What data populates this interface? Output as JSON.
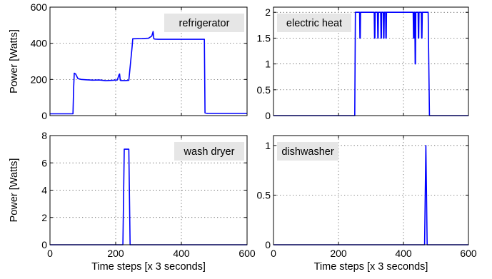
{
  "figure": {
    "xlabel": "Time steps [x 3 seconds]",
    "ylabel": "Power [Watts]",
    "line_color": "#0000ff",
    "label_background": "#e6e6e6"
  },
  "chart_data": [
    {
      "type": "line",
      "title": "refrigerator",
      "xlabel": "",
      "ylabel": "Power [Watts]",
      "xlim": [
        0,
        600
      ],
      "ylim": [
        0,
        600
      ],
      "xticks": [
        0,
        200,
        400,
        600
      ],
      "yticks": [
        0,
        200,
        400,
        600
      ],
      "xtick_labels_shown": false,
      "grid": true,
      "legend_position": "top-right",
      "series": [
        {
          "x": [
            0,
            70,
            72,
            74,
            78,
            85,
            95,
            110,
            130,
            150,
            170,
            190,
            205,
            210,
            212,
            214,
            216,
            230,
            240,
            250,
            252,
            255,
            280,
            300,
            310,
            314,
            316,
            320,
            330,
            360,
            400,
            440,
            470,
            472,
            480,
            520,
            560,
            600
          ],
          "y": [
            10,
            10,
            150,
            235,
            230,
            205,
            200,
            198,
            196,
            197,
            193,
            195,
            197,
            225,
            230,
            195,
            194,
            194,
            195,
            380,
            425,
            425,
            426,
            428,
            440,
            465,
            425,
            423,
            422,
            422,
            422,
            422,
            422,
            15,
            12,
            12,
            12,
            12
          ]
        }
      ]
    },
    {
      "type": "line",
      "title": "electric heat",
      "xlabel": "",
      "ylabel": "",
      "xlim": [
        0,
        600
      ],
      "ylim": [
        0,
        2.1
      ],
      "xticks": [
        0,
        200,
        400,
        600
      ],
      "yticks": [
        0,
        0.5,
        1,
        1.5,
        2
      ],
      "xtick_labels_shown": false,
      "grid": true,
      "legend_position": "top-left",
      "series": [
        {
          "x": [
            0,
            250,
            252,
            265,
            266,
            267,
            268,
            310,
            311,
            312,
            313,
            320,
            321,
            322,
            323,
            330,
            331,
            332,
            333,
            338,
            339,
            340,
            341,
            345,
            346,
            347,
            348,
            430,
            431,
            432,
            433,
            435,
            436,
            437,
            438,
            445,
            446,
            447,
            448,
            455,
            456,
            457,
            458,
            475,
            476,
            480,
            490,
            600
          ],
          "y": [
            0,
            0,
            2,
            2,
            1.5,
            1.5,
            2,
            2,
            1.5,
            1.5,
            2,
            2,
            1.5,
            1.5,
            2,
            2,
            1.5,
            1.5,
            2,
            2,
            1.5,
            1.5,
            2,
            2,
            1.5,
            1.5,
            2,
            2,
            1.5,
            1.5,
            2,
            2,
            1,
            1,
            2,
            2,
            1.5,
            1.5,
            2,
            2,
            1.5,
            1.5,
            2,
            2,
            2,
            0,
            0,
            0
          ]
        }
      ]
    },
    {
      "type": "line",
      "title": "wash dryer",
      "xlabel": "Time steps [x 3 seconds]",
      "ylabel": "Power [Watts]",
      "xlim": [
        0,
        600
      ],
      "ylim": [
        0,
        8
      ],
      "xticks": [
        0,
        200,
        400,
        600
      ],
      "yticks": [
        0,
        2,
        4,
        6,
        8
      ],
      "xtick_labels_shown": true,
      "grid": true,
      "legend_position": "top-right",
      "series": [
        {
          "x": [
            0,
            222,
            226,
            240,
            244,
            600
          ],
          "y": [
            0,
            0,
            7,
            7,
            0,
            0
          ]
        }
      ]
    },
    {
      "type": "line",
      "title": "dishwasher",
      "xlabel": "Time steps [x 3 seconds]",
      "ylabel": "",
      "xlim": [
        0,
        600
      ],
      "ylim": [
        0,
        1.1
      ],
      "xticks": [
        0,
        200,
        400,
        600
      ],
      "yticks": [
        0,
        0.5,
        1
      ],
      "xtick_labels_shown": true,
      "grid": true,
      "legend_position": "top-left",
      "series": [
        {
          "x": [
            0,
            465,
            469,
            473,
            600
          ],
          "y": [
            0,
            0,
            1,
            0,
            0
          ]
        }
      ]
    }
  ]
}
